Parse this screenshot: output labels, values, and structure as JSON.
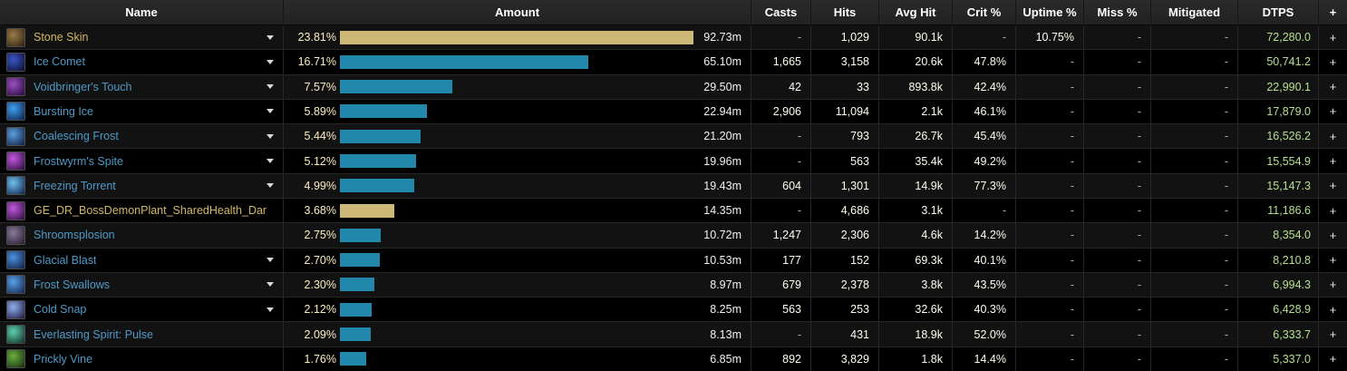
{
  "table": {
    "columns": {
      "name": "Name",
      "amount": "Amount",
      "casts": "Casts",
      "hits": "Hits",
      "avg_hit": "Avg Hit",
      "crit": "Crit %",
      "uptime": "Uptime %",
      "miss": "Miss %",
      "mitigated": "Mitigated",
      "dtps": "DTPS",
      "plus": "+"
    },
    "max_pct": 23.81,
    "colors": {
      "bar_gold": "#cdb877",
      "bar_blue": "#2187ab",
      "name_blue": "#4d9ac8",
      "name_gold": "#d2b764",
      "pct_text": "#f8eec2",
      "dtps_text": "#b5e08e"
    },
    "rows": [
      {
        "name": "Stone Skin",
        "name_color": "gold",
        "caret": true,
        "icon": {
          "name": "stone-skin-icon",
          "c1": "#9a7a48",
          "c2": "#2c1f0e"
        },
        "pct": "23.81%",
        "pct_value": 23.81,
        "bar": "gold",
        "amount": "92.73m",
        "casts": "-",
        "hits": "1,029",
        "avg_hit": "90.1k",
        "crit": "-",
        "uptime": "10.75%",
        "miss": "-",
        "mitigated": "-",
        "dtps": "72,280.0",
        "plus": "+"
      },
      {
        "name": "Ice Comet",
        "name_color": "blue",
        "caret": true,
        "icon": {
          "name": "ice-comet-icon",
          "c1": "#3a56c8",
          "c2": "#0a0d28"
        },
        "pct": "16.71%",
        "pct_value": 16.71,
        "bar": "blue",
        "amount": "65.10m",
        "casts": "1,665",
        "hits": "3,158",
        "avg_hit": "20.6k",
        "crit": "47.8%",
        "uptime": "-",
        "miss": "-",
        "mitigated": "-",
        "dtps": "50,741.2",
        "plus": "+"
      },
      {
        "name": "Voidbringer's Touch",
        "name_color": "blue",
        "caret": true,
        "icon": {
          "name": "voidbringers-touch-icon",
          "c1": "#9a4fc0",
          "c2": "#26093a"
        },
        "pct": "7.57%",
        "pct_value": 7.57,
        "bar": "blue",
        "amount": "29.50m",
        "casts": "42",
        "hits": "33",
        "avg_hit": "893.8k",
        "crit": "42.4%",
        "uptime": "-",
        "miss": "-",
        "mitigated": "-",
        "dtps": "22,990.1",
        "plus": "+"
      },
      {
        "name": "Bursting Ice",
        "name_color": "blue",
        "caret": true,
        "icon": {
          "name": "bursting-ice-icon",
          "c1": "#3fa0f0",
          "c2": "#0a1c4a"
        },
        "pct": "5.89%",
        "pct_value": 5.89,
        "bar": "blue",
        "amount": "22.94m",
        "casts": "2,906",
        "hits": "11,094",
        "avg_hit": "2.1k",
        "crit": "46.1%",
        "uptime": "-",
        "miss": "-",
        "mitigated": "-",
        "dtps": "17,879.0",
        "plus": "+"
      },
      {
        "name": "Coalescing Frost",
        "name_color": "blue",
        "caret": true,
        "icon": {
          "name": "coalescing-frost-icon",
          "c1": "#5a9fe0",
          "c2": "#0e1c3a"
        },
        "pct": "5.44%",
        "pct_value": 5.44,
        "bar": "blue",
        "amount": "21.20m",
        "casts": "-",
        "hits": "793",
        "avg_hit": "26.7k",
        "crit": "45.4%",
        "uptime": "-",
        "miss": "-",
        "mitigated": "-",
        "dtps": "16,526.2",
        "plus": "+"
      },
      {
        "name": "Frostwyrm's Spite",
        "name_color": "blue",
        "caret": true,
        "icon": {
          "name": "frostwyrms-spite-icon",
          "c1": "#c058e0",
          "c2": "#2a0a34"
        },
        "pct": "5.12%",
        "pct_value": 5.12,
        "bar": "blue",
        "amount": "19.96m",
        "casts": "-",
        "hits": "563",
        "avg_hit": "35.4k",
        "crit": "49.2%",
        "uptime": "-",
        "miss": "-",
        "mitigated": "-",
        "dtps": "15,554.9",
        "plus": "+"
      },
      {
        "name": "Freezing Torrent",
        "name_color": "blue",
        "caret": true,
        "icon": {
          "name": "freezing-torrent-icon",
          "c1": "#70c0f0",
          "c2": "#0c2048"
        },
        "pct": "4.99%",
        "pct_value": 4.99,
        "bar": "blue",
        "amount": "19.43m",
        "casts": "604",
        "hits": "1,301",
        "avg_hit": "14.9k",
        "crit": "77.3%",
        "uptime": "-",
        "miss": "-",
        "mitigated": "-",
        "dtps": "15,147.3",
        "plus": "+"
      },
      {
        "name": "GE_DR_BossDemonPlant_SharedHealth_Dama",
        "name_color": "gold",
        "caret": false,
        "icon": {
          "name": "shared-health-icon",
          "c1": "#c058e0",
          "c2": "#2a0a34"
        },
        "pct": "3.68%",
        "pct_value": 3.68,
        "bar": "gold",
        "amount": "14.35m",
        "casts": "-",
        "hits": "4,686",
        "avg_hit": "3.1k",
        "crit": "-",
        "uptime": "-",
        "miss": "-",
        "mitigated": "-",
        "dtps": "11,186.6",
        "plus": "+"
      },
      {
        "name": "Shroomsplosion",
        "name_color": "blue",
        "caret": false,
        "icon": {
          "name": "shroomsplosion-icon",
          "c1": "#8a7a9a",
          "c2": "#241a2e"
        },
        "pct": "2.75%",
        "pct_value": 2.75,
        "bar": "blue",
        "amount": "10.72m",
        "casts": "1,247",
        "hits": "2,306",
        "avg_hit": "4.6k",
        "crit": "14.2%",
        "uptime": "-",
        "miss": "-",
        "mitigated": "-",
        "dtps": "8,354.0",
        "plus": "+"
      },
      {
        "name": "Glacial Blast",
        "name_color": "blue",
        "caret": true,
        "icon": {
          "name": "glacial-blast-icon",
          "c1": "#4a90e0",
          "c2": "#101c3c"
        },
        "pct": "2.70%",
        "pct_value": 2.7,
        "bar": "blue",
        "amount": "10.53m",
        "casts": "177",
        "hits": "152",
        "avg_hit": "69.3k",
        "crit": "40.1%",
        "uptime": "-",
        "miss": "-",
        "mitigated": "-",
        "dtps": "8,210.8",
        "plus": "+"
      },
      {
        "name": "Frost Swallows",
        "name_color": "blue",
        "caret": true,
        "icon": {
          "name": "frost-swallows-icon",
          "c1": "#5aa0e8",
          "c2": "#12234a"
        },
        "pct": "2.30%",
        "pct_value": 2.3,
        "bar": "blue",
        "amount": "8.97m",
        "casts": "679",
        "hits": "2,378",
        "avg_hit": "3.8k",
        "crit": "43.5%",
        "uptime": "-",
        "miss": "-",
        "mitigated": "-",
        "dtps": "6,994.3",
        "plus": "+"
      },
      {
        "name": "Cold Snap",
        "name_color": "blue",
        "caret": true,
        "icon": {
          "name": "cold-snap-icon",
          "c1": "#90b0f0",
          "c2": "#1a1438"
        },
        "pct": "2.12%",
        "pct_value": 2.12,
        "bar": "blue",
        "amount": "8.25m",
        "casts": "563",
        "hits": "253",
        "avg_hit": "32.6k",
        "crit": "40.3%",
        "uptime": "-",
        "miss": "-",
        "mitigated": "-",
        "dtps": "6,428.9",
        "plus": "+"
      },
      {
        "name": "Everlasting Spirit: Pulse",
        "name_color": "blue",
        "caret": false,
        "icon": {
          "name": "everlasting-spirit-pulse-icon",
          "c1": "#60d0b0",
          "c2": "#0c2a20"
        },
        "pct": "2.09%",
        "pct_value": 2.09,
        "bar": "blue",
        "amount": "8.13m",
        "casts": "-",
        "hits": "431",
        "avg_hit": "18.9k",
        "crit": "52.0%",
        "uptime": "-",
        "miss": "-",
        "mitigated": "-",
        "dtps": "6,333.7",
        "plus": "+"
      },
      {
        "name": "Prickly Vine",
        "name_color": "blue",
        "caret": false,
        "icon": {
          "name": "prickly-vine-icon",
          "c1": "#6ab040",
          "c2": "#14280c"
        },
        "pct": "1.76%",
        "pct_value": 1.76,
        "bar": "blue",
        "amount": "6.85m",
        "casts": "892",
        "hits": "3,829",
        "avg_hit": "1.8k",
        "crit": "14.4%",
        "uptime": "-",
        "miss": "-",
        "mitigated": "-",
        "dtps": "5,337.0",
        "plus": "+"
      }
    ]
  }
}
